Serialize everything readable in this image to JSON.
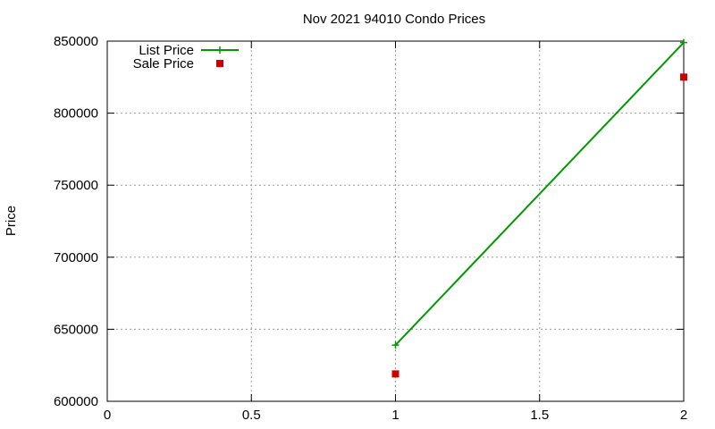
{
  "chart_data": {
    "type": "line",
    "title": "Nov 2021 94010 Condo Prices",
    "xlabel": "",
    "ylabel": "Price",
    "xlim": [
      0,
      2
    ],
    "ylim": [
      600000,
      850000
    ],
    "x_ticks": [
      "0",
      "0.5",
      "1",
      "1.5",
      "2"
    ],
    "y_ticks": [
      "600000",
      "650000",
      "700000",
      "750000",
      "800000",
      "850000"
    ],
    "grid": true,
    "legend_position": "top-left",
    "series": [
      {
        "name": "List Price",
        "style": "line-with-plus-markers",
        "color": "#009900",
        "x": [
          1,
          2
        ],
        "y": [
          639000,
          849000
        ]
      },
      {
        "name": "Sale Price",
        "style": "square-markers",
        "color": "#cc0000",
        "x": [
          1,
          2
        ],
        "y": [
          619000,
          825000
        ]
      }
    ]
  }
}
